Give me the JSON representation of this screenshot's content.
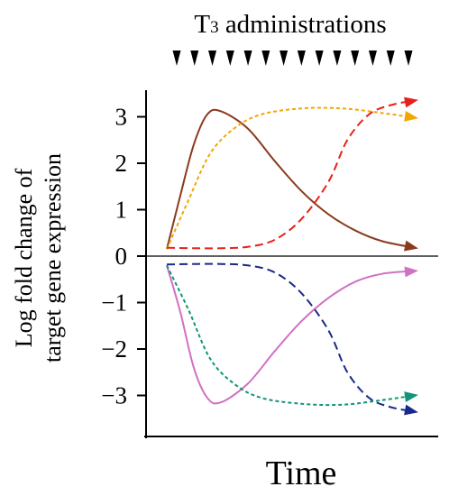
{
  "chart_data": {
    "type": "line",
    "title_main": "T",
    "title_sub": "3",
    "title_rest": " administrations",
    "administrations_count": 14,
    "ylabel_line1": "Log fold change of",
    "ylabel_line2": "target gene expression",
    "xlabel": "Time",
    "ylim": [
      -3.45,
      3.45
    ],
    "xlim": [
      0,
      10
    ],
    "y_ticks": [
      {
        "value": 3,
        "label": "3"
      },
      {
        "value": 2,
        "label": "2"
      },
      {
        "value": 1,
        "label": "1"
      },
      {
        "value": 0,
        "label": "0"
      },
      {
        "value": -1,
        "label": "−1"
      },
      {
        "value": -2,
        "label": "−2"
      },
      {
        "value": -3,
        "label": "−3"
      }
    ],
    "series": [
      {
        "color": "#8B3A1E",
        "dash": "solid",
        "points": [
          [
            0,
            0.15
          ],
          [
            0.5,
            1.3
          ],
          [
            1,
            2.4
          ],
          [
            1.5,
            3.05
          ],
          [
            2,
            3.12
          ],
          [
            3,
            2.75
          ],
          [
            4,
            2.05
          ],
          [
            5,
            1.4
          ],
          [
            6,
            0.9
          ],
          [
            7,
            0.55
          ],
          [
            8,
            0.32
          ],
          [
            9.2,
            0.18
          ]
        ]
      },
      {
        "color": "#F2A600",
        "dash": "short",
        "points": [
          [
            0,
            0.15
          ],
          [
            0.8,
            1.2
          ],
          [
            1.6,
            2.2
          ],
          [
            2.5,
            2.75
          ],
          [
            3.5,
            3.05
          ],
          [
            5,
            3.18
          ],
          [
            6.5,
            3.18
          ],
          [
            8,
            3.08
          ],
          [
            9.2,
            2.98
          ]
        ]
      },
      {
        "color": "#E8201A",
        "dash": "long",
        "points": [
          [
            0,
            0.18
          ],
          [
            1,
            0.17
          ],
          [
            2,
            0.17
          ],
          [
            3,
            0.2
          ],
          [
            4,
            0.35
          ],
          [
            5,
            0.8
          ],
          [
            6,
            1.6
          ],
          [
            6.7,
            2.5
          ],
          [
            7.5,
            3.05
          ],
          [
            8.3,
            3.25
          ],
          [
            9.2,
            3.35
          ]
        ]
      },
      {
        "color": "#D070C4",
        "dash": "solid",
        "points": [
          [
            0,
            -0.2
          ],
          [
            0.5,
            -1.2
          ],
          [
            1,
            -2.4
          ],
          [
            1.5,
            -3.05
          ],
          [
            2,
            -3.15
          ],
          [
            3,
            -2.75
          ],
          [
            4,
            -2.05
          ],
          [
            5,
            -1.4
          ],
          [
            6,
            -0.9
          ],
          [
            7,
            -0.55
          ],
          [
            8,
            -0.38
          ],
          [
            9.2,
            -0.32
          ]
        ]
      },
      {
        "color": "#10957A",
        "dash": "short",
        "points": [
          [
            0,
            -0.2
          ],
          [
            0.8,
            -1.15
          ],
          [
            1.6,
            -2.2
          ],
          [
            2.5,
            -2.75
          ],
          [
            3.5,
            -3.05
          ],
          [
            5,
            -3.18
          ],
          [
            6.5,
            -3.2
          ],
          [
            8,
            -3.1
          ],
          [
            9.2,
            -3.0
          ]
        ]
      },
      {
        "color": "#1A2A8A",
        "dash": "long",
        "points": [
          [
            0,
            -0.18
          ],
          [
            1,
            -0.17
          ],
          [
            2,
            -0.17
          ],
          [
            3,
            -0.2
          ],
          [
            4,
            -0.35
          ],
          [
            5,
            -0.8
          ],
          [
            6,
            -1.6
          ],
          [
            6.7,
            -2.5
          ],
          [
            7.5,
            -3.05
          ],
          [
            8.3,
            -3.25
          ],
          [
            9.2,
            -3.35
          ]
        ]
      }
    ]
  }
}
